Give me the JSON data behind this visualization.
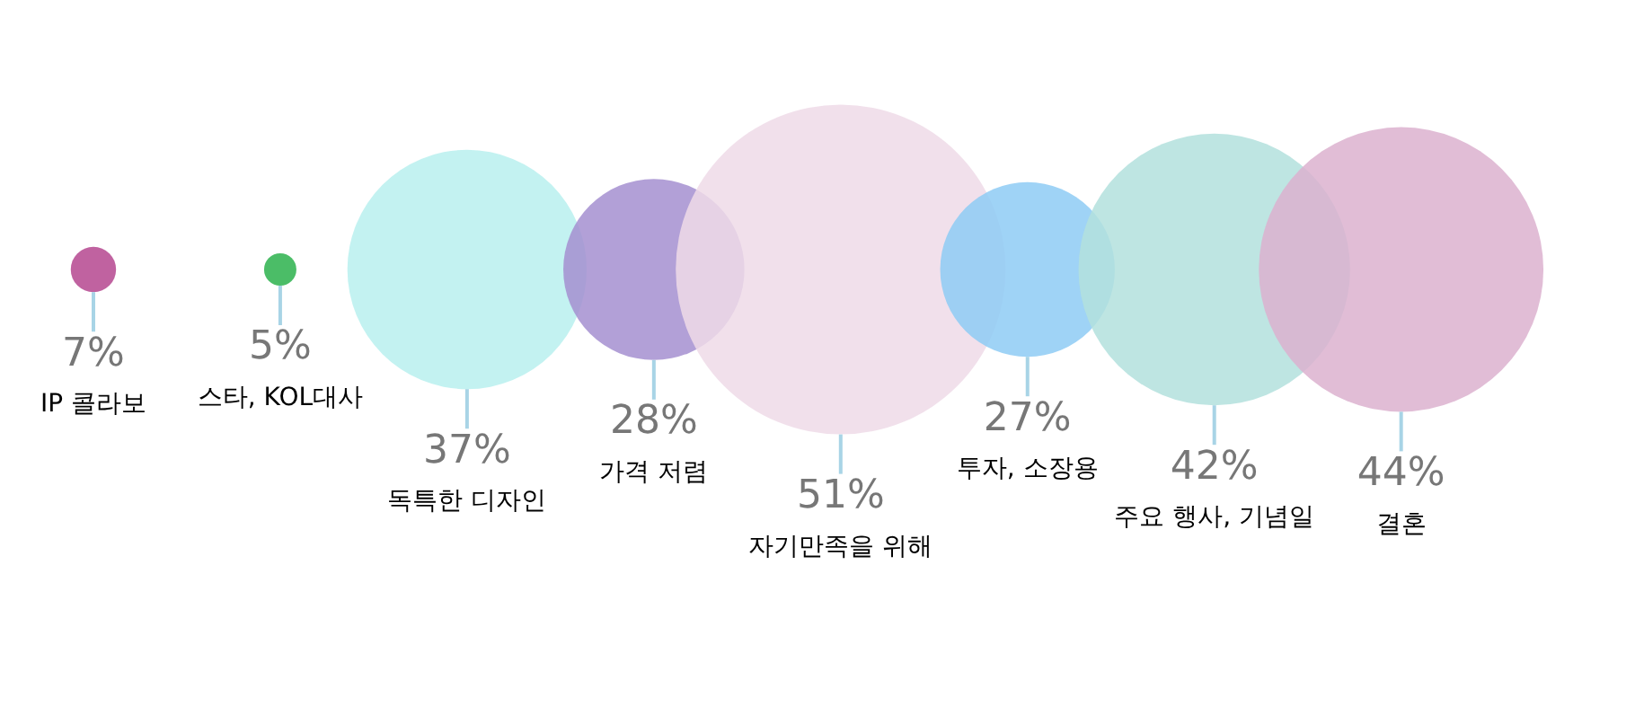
{
  "chart_data": {
    "type": "other",
    "categories": [
      "IP 콜라보",
      "스타, KOL대사",
      "독특한 디자인",
      "가격 저렴",
      "자기만족을 위해",
      "투자, 소장용",
      "주요 행사, 기념일",
      "결혼"
    ],
    "values": [
      7,
      5,
      37,
      28,
      51,
      27,
      42,
      44
    ],
    "value_labels": [
      "7%",
      "5%",
      "37%",
      "28%",
      "51%",
      "27%",
      "42%",
      "44%"
    ],
    "colors": [
      "#b5478f",
      "#2bb24c",
      "#b9f0ee",
      "#a48fd0",
      "#efdbe8",
      "#8ecbf5",
      "#b3e0dd",
      "#dcb2cf"
    ]
  }
}
